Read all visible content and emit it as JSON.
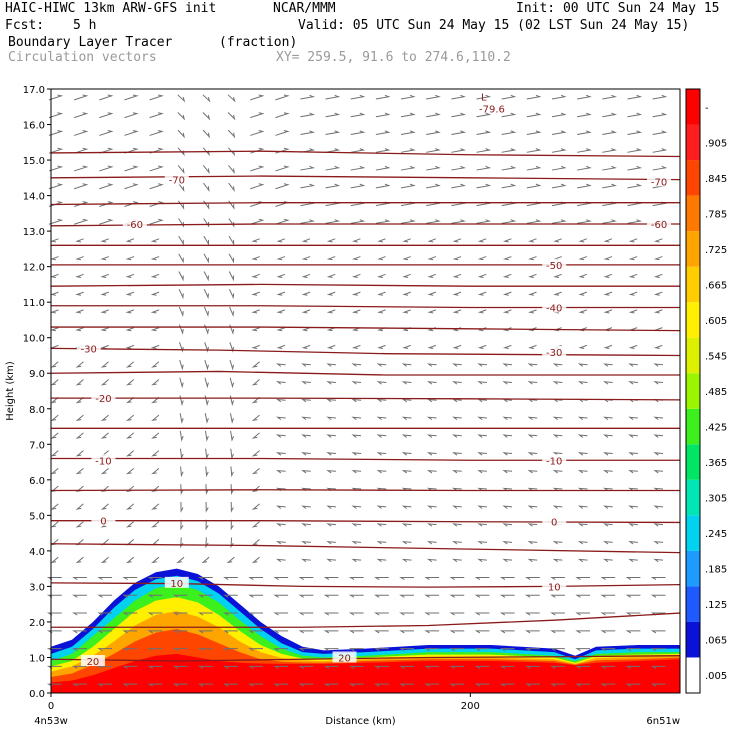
{
  "header": {
    "model": "HAIC-HIWC 13km ARW-GFS init",
    "org": "NCAR/MMM",
    "init": "Init: 00 UTC Sun 24 May 15",
    "fcst_label": "Fcst:",
    "fcst_value": "5 h",
    "valid": "Valid: 05 UTC Sun 24 May 15 (02 LST Sun 24 May 15)",
    "field": "Boundary Layer Tracer",
    "field_units": "(fraction)",
    "vectors": "Circulation vectors",
    "xy": "XY= 259.5, 91.6 to 274.6,110.2"
  },
  "chart_data": {
    "type": "heatmap",
    "xlabel": "Distance (km)",
    "ylabel": "Height (km)",
    "xlim": [
      0,
      300
    ],
    "ylim": [
      0,
      17
    ],
    "x_ticks": [
      {
        "value": 0,
        "label": "0"
      },
      {
        "value": 200,
        "label": "200"
      }
    ],
    "x_end_labels": [
      "4n53w",
      "6n51w"
    ],
    "y_ticks": [
      0,
      1,
      2,
      3,
      4,
      5,
      6,
      7,
      8,
      9,
      10,
      11,
      12,
      13,
      14,
      15,
      16,
      17
    ],
    "y_tick_labels": [
      "0.0",
      "1.0",
      "2.0",
      "3.0",
      "4.0",
      "5.0",
      "6.0",
      "7.0",
      "8.0",
      "9.0",
      "10.0",
      "11.0",
      "12.0",
      "13.0",
      "14.0",
      "15.0",
      "16.0",
      "17.0"
    ],
    "colorbar": {
      "labels": [
        ".005",
        ".065",
        ".125",
        ".185",
        ".245",
        ".305",
        ".365",
        ".425",
        ".485",
        ".545",
        ".605",
        ".665",
        ".725",
        ".785",
        ".845",
        ".905",
        "-"
      ],
      "colors": [
        "#ffffff",
        "#0a12d8",
        "#1e5aff",
        "#1e9bff",
        "#00d2f0",
        "#00e6b4",
        "#00e664",
        "#3cf01e",
        "#9bf500",
        "#dcf000",
        "#fff000",
        "#ffcd00",
        "#ffa500",
        "#ff7800",
        "#ff4600",
        "#ff1e1e",
        "#ff0000"
      ]
    },
    "tracer_layers": [
      {
        "color": "#0a12d8",
        "top": [
          [
            0,
            1.3
          ],
          [
            10,
            1.5
          ],
          [
            20,
            2.0
          ],
          [
            30,
            2.6
          ],
          [
            40,
            3.1
          ],
          [
            50,
            3.4
          ],
          [
            60,
            3.5
          ],
          [
            70,
            3.35
          ],
          [
            80,
            3.0
          ],
          [
            90,
            2.5
          ],
          [
            100,
            2.0
          ],
          [
            110,
            1.6
          ],
          [
            120,
            1.3
          ],
          [
            130,
            1.2
          ],
          [
            150,
            1.25
          ],
          [
            180,
            1.35
          ],
          [
            210,
            1.35
          ],
          [
            240,
            1.25
          ],
          [
            250,
            1.05
          ],
          [
            260,
            1.3
          ],
          [
            280,
            1.35
          ],
          [
            300,
            1.35
          ]
        ]
      },
      {
        "color": "#00d2f0",
        "top": [
          [
            0,
            1.1
          ],
          [
            10,
            1.3
          ],
          [
            20,
            1.8
          ],
          [
            30,
            2.4
          ],
          [
            40,
            2.9
          ],
          [
            50,
            3.2
          ],
          [
            60,
            3.3
          ],
          [
            70,
            3.15
          ],
          [
            80,
            2.8
          ],
          [
            90,
            2.3
          ],
          [
            100,
            1.8
          ],
          [
            110,
            1.4
          ],
          [
            120,
            1.15
          ],
          [
            130,
            1.1
          ],
          [
            150,
            1.15
          ],
          [
            180,
            1.25
          ],
          [
            210,
            1.25
          ],
          [
            240,
            1.15
          ],
          [
            250,
            0.95
          ],
          [
            260,
            1.2
          ],
          [
            280,
            1.25
          ],
          [
            300,
            1.25
          ]
        ]
      },
      {
        "color": "#3cf01e",
        "top": [
          [
            0,
            0.9
          ],
          [
            10,
            1.1
          ],
          [
            20,
            1.6
          ],
          [
            30,
            2.1
          ],
          [
            40,
            2.6
          ],
          [
            50,
            2.95
          ],
          [
            60,
            3.05
          ],
          [
            70,
            2.9
          ],
          [
            80,
            2.55
          ],
          [
            90,
            2.05
          ],
          [
            100,
            1.6
          ],
          [
            110,
            1.25
          ],
          [
            120,
            1.05
          ],
          [
            130,
            1.0
          ],
          [
            150,
            1.05
          ],
          [
            180,
            1.15
          ],
          [
            210,
            1.15
          ],
          [
            240,
            1.05
          ],
          [
            250,
            0.9
          ],
          [
            260,
            1.1
          ],
          [
            280,
            1.15
          ],
          [
            300,
            1.15
          ]
        ]
      },
      {
        "color": "#fff000",
        "top": [
          [
            0,
            0.75
          ],
          [
            10,
            0.9
          ],
          [
            20,
            1.3
          ],
          [
            30,
            1.8
          ],
          [
            40,
            2.3
          ],
          [
            50,
            2.6
          ],
          [
            60,
            2.7
          ],
          [
            70,
            2.55
          ],
          [
            80,
            2.2
          ],
          [
            90,
            1.75
          ],
          [
            100,
            1.35
          ],
          [
            110,
            1.1
          ],
          [
            120,
            0.97
          ],
          [
            130,
            0.95
          ],
          [
            150,
            1.0
          ],
          [
            180,
            1.08
          ],
          [
            210,
            1.08
          ],
          [
            240,
            1.0
          ],
          [
            250,
            0.85
          ],
          [
            260,
            1.05
          ],
          [
            280,
            1.08
          ],
          [
            300,
            1.1
          ]
        ]
      },
      {
        "color": "#ffa500",
        "top": [
          [
            0,
            0.6
          ],
          [
            10,
            0.75
          ],
          [
            20,
            1.05
          ],
          [
            30,
            1.45
          ],
          [
            40,
            1.9
          ],
          [
            50,
            2.2
          ],
          [
            60,
            2.3
          ],
          [
            70,
            2.15
          ],
          [
            80,
            1.85
          ],
          [
            90,
            1.45
          ],
          [
            100,
            1.15
          ],
          [
            110,
            0.98
          ],
          [
            120,
            0.92
          ],
          [
            130,
            0.9
          ],
          [
            150,
            0.95
          ],
          [
            180,
            1.0
          ],
          [
            210,
            1.0
          ],
          [
            240,
            0.95
          ],
          [
            250,
            0.82
          ],
          [
            260,
            0.98
          ],
          [
            280,
            1.02
          ],
          [
            300,
            1.05
          ]
        ]
      },
      {
        "color": "#ff4600",
        "top": [
          [
            0,
            0.45
          ],
          [
            10,
            0.55
          ],
          [
            20,
            0.8
          ],
          [
            30,
            1.1
          ],
          [
            40,
            1.45
          ],
          [
            50,
            1.7
          ],
          [
            60,
            1.8
          ],
          [
            70,
            1.65
          ],
          [
            80,
            1.4
          ],
          [
            90,
            1.15
          ],
          [
            100,
            0.95
          ],
          [
            110,
            0.88
          ],
          [
            120,
            0.86
          ],
          [
            130,
            0.85
          ],
          [
            150,
            0.9
          ],
          [
            180,
            0.95
          ],
          [
            210,
            0.95
          ],
          [
            240,
            0.9
          ],
          [
            250,
            0.8
          ],
          [
            260,
            0.92
          ],
          [
            280,
            0.95
          ],
          [
            300,
            1.0
          ]
        ]
      },
      {
        "color": "#ff0000",
        "top": [
          [
            0,
            0.3
          ],
          [
            10,
            0.35
          ],
          [
            20,
            0.5
          ],
          [
            30,
            0.7
          ],
          [
            40,
            0.9
          ],
          [
            50,
            1.05
          ],
          [
            60,
            1.1
          ],
          [
            70,
            1.0
          ],
          [
            80,
            0.9
          ],
          [
            90,
            0.85
          ],
          [
            100,
            0.83
          ],
          [
            110,
            0.82
          ],
          [
            120,
            0.82
          ],
          [
            130,
            0.82
          ],
          [
            150,
            0.85
          ],
          [
            180,
            0.9
          ],
          [
            210,
            0.9
          ],
          [
            240,
            0.85
          ],
          [
            250,
            0.78
          ],
          [
            260,
            0.85
          ],
          [
            280,
            0.9
          ],
          [
            300,
            0.95
          ]
        ]
      }
    ],
    "temperature_contours": [
      {
        "label": "20",
        "label_at": [
          [
            20,
            0.9
          ],
          [
            140,
            1.0
          ]
        ],
        "points": [
          [
            0,
            0.95
          ],
          [
            60,
            0.9
          ],
          [
            120,
            0.95
          ],
          [
            180,
            1.0
          ],
          [
            240,
            1.02
          ],
          [
            300,
            1.05
          ]
        ]
      },
      {
        "label": "",
        "label_at": [],
        "points": [
          [
            0,
            1.85
          ],
          [
            60,
            1.85
          ],
          [
            120,
            1.85
          ],
          [
            180,
            1.9
          ],
          [
            240,
            2.05
          ],
          [
            300,
            2.25
          ]
        ]
      },
      {
        "label": "10",
        "label_at": [
          [
            60,
            3.1
          ],
          [
            240,
            3.0
          ]
        ],
        "points": [
          [
            0,
            3.1
          ],
          [
            60,
            3.08
          ],
          [
            120,
            3.0
          ],
          [
            180,
            2.98
          ],
          [
            240,
            3.0
          ],
          [
            300,
            3.05
          ]
        ]
      },
      {
        "label": "",
        "label_at": [],
        "points": [
          [
            0,
            4.2
          ],
          [
            100,
            4.15
          ],
          [
            200,
            4.05
          ],
          [
            300,
            3.95
          ]
        ]
      },
      {
        "label": "0",
        "label_at": [
          [
            25,
            4.85
          ],
          [
            240,
            4.82
          ]
        ],
        "points": [
          [
            0,
            4.85
          ],
          [
            100,
            4.85
          ],
          [
            200,
            4.82
          ],
          [
            300,
            4.8
          ]
        ]
      },
      {
        "label": "",
        "label_at": [],
        "points": [
          [
            0,
            5.7
          ],
          [
            100,
            5.72
          ],
          [
            200,
            5.7
          ],
          [
            300,
            5.7
          ]
        ]
      },
      {
        "label": "-10",
        "label_at": [
          [
            25,
            6.55
          ],
          [
            240,
            6.55
          ]
        ],
        "points": [
          [
            0,
            6.6
          ],
          [
            100,
            6.6
          ],
          [
            200,
            6.55
          ],
          [
            300,
            6.55
          ]
        ]
      },
      {
        "label": "",
        "label_at": [],
        "points": [
          [
            0,
            7.45
          ],
          [
            100,
            7.45
          ],
          [
            200,
            7.45
          ],
          [
            300,
            7.45
          ]
        ]
      },
      {
        "label": "-20",
        "label_at": [
          [
            25,
            8.3
          ]
        ],
        "points": [
          [
            0,
            8.3
          ],
          [
            100,
            8.3
          ],
          [
            200,
            8.28
          ],
          [
            300,
            8.25
          ]
        ]
      },
      {
        "label": "",
        "label_at": [],
        "points": [
          [
            0,
            9.0
          ],
          [
            80,
            9.05
          ],
          [
            160,
            8.95
          ],
          [
            300,
            8.95
          ]
        ]
      },
      {
        "label": "-30",
        "label_at": [
          [
            18,
            9.7
          ],
          [
            240,
            9.6
          ]
        ],
        "points": [
          [
            0,
            9.7
          ],
          [
            80,
            9.65
          ],
          [
            160,
            9.55
          ],
          [
            300,
            9.5
          ]
        ]
      },
      {
        "label": "",
        "label_at": [],
        "points": [
          [
            0,
            10.3
          ],
          [
            100,
            10.3
          ],
          [
            200,
            10.25
          ],
          [
            300,
            10.2
          ]
        ]
      },
      {
        "label": "-40",
        "label_at": [
          [
            240,
            10.85
          ]
        ],
        "points": [
          [
            0,
            10.9
          ],
          [
            100,
            10.9
          ],
          [
            200,
            10.85
          ],
          [
            300,
            10.85
          ]
        ]
      },
      {
        "label": "",
        "label_at": [],
        "points": [
          [
            0,
            11.45
          ],
          [
            100,
            11.5
          ],
          [
            200,
            11.45
          ],
          [
            300,
            11.45
          ]
        ]
      },
      {
        "label": "-50",
        "label_at": [
          [
            240,
            12.05
          ]
        ],
        "points": [
          [
            0,
            12.05
          ],
          [
            100,
            12.05
          ],
          [
            200,
            12.05
          ],
          [
            300,
            12.05
          ]
        ]
      },
      {
        "label": "",
        "label_at": [],
        "points": [
          [
            0,
            12.6
          ],
          [
            100,
            12.6
          ],
          [
            200,
            12.6
          ],
          [
            300,
            12.6
          ]
        ]
      },
      {
        "label": "-60",
        "label_at": [
          [
            40,
            13.2
          ],
          [
            290,
            13.2
          ]
        ],
        "points": [
          [
            0,
            13.15
          ],
          [
            100,
            13.2
          ],
          [
            200,
            13.2
          ],
          [
            300,
            13.2
          ]
        ]
      },
      {
        "label": "",
        "label_at": [],
        "points": [
          [
            0,
            13.75
          ],
          [
            100,
            13.8
          ],
          [
            200,
            13.8
          ],
          [
            300,
            13.8
          ]
        ]
      },
      {
        "label": "-70",
        "label_at": [
          [
            60,
            14.45
          ],
          [
            290,
            14.4
          ]
        ],
        "points": [
          [
            0,
            14.5
          ],
          [
            100,
            14.55
          ],
          [
            200,
            14.5
          ],
          [
            300,
            14.45
          ]
        ]
      },
      {
        "label": "",
        "label_at": [],
        "points": [
          [
            0,
            15.2
          ],
          [
            100,
            15.25
          ],
          [
            200,
            15.15
          ],
          [
            300,
            15.1
          ]
        ]
      }
    ],
    "low_marker": {
      "symbol": "L",
      "value": "-79.6",
      "x": 207,
      "y": 16.9
    }
  }
}
